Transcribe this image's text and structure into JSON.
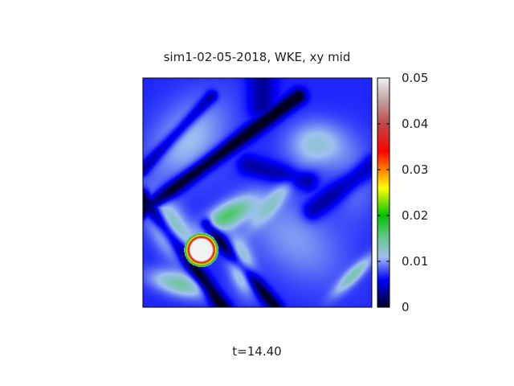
{
  "chart_data": {
    "type": "heatmap",
    "title": "sim1-02-05-2018, WKE, xy mid",
    "xlabel": "t=14.40",
    "ylabel": "",
    "colorbar": {
      "range": [
        0,
        0.05
      ],
      "ticks": [
        0,
        0.01,
        0.02,
        0.03,
        0.04,
        0.05
      ],
      "tick_labels": [
        "0",
        "0.01",
        "0.02",
        "0.03",
        "0.04",
        "0.05"
      ],
      "stops": [
        {
          "value": 0.0,
          "color": "#000020"
        },
        {
          "value": 0.002,
          "color": "#00006e"
        },
        {
          "value": 0.006,
          "color": "#0000ff"
        },
        {
          "value": 0.011,
          "color": "#a0c0f0"
        },
        {
          "value": 0.016,
          "color": "#58c878"
        },
        {
          "value": 0.02,
          "color": "#00c000"
        },
        {
          "value": 0.026,
          "color": "#ffff00"
        },
        {
          "value": 0.03,
          "color": "#ff8000"
        },
        {
          "value": 0.034,
          "color": "#ff0000"
        },
        {
          "value": 0.04,
          "color": "#c04848"
        },
        {
          "value": 0.045,
          "color": "#c0a0a0"
        },
        {
          "value": 0.05,
          "color": "#f2f2f2"
        }
      ]
    },
    "field": {
      "x_range": [
        0,
        1
      ],
      "y_range": [
        0,
        1
      ],
      "background": 0.007,
      "features": [
        {
          "kind": "blob",
          "x": 0.2,
          "y": 0.73,
          "sx": 0.1,
          "sy": 0.15,
          "angle": -40,
          "amp": 0.004
        },
        {
          "kind": "blob",
          "x": 0.76,
          "y": 0.71,
          "sx": 0.09,
          "sy": 0.07,
          "angle": 0,
          "amp": 0.005
        },
        {
          "kind": "blob",
          "x": 0.66,
          "y": 0.3,
          "sx": 0.18,
          "sy": 0.11,
          "angle": -40,
          "amp": 0.003
        },
        {
          "kind": "blob",
          "x": 0.93,
          "y": 0.55,
          "sx": 0.07,
          "sy": 0.12,
          "angle": 0,
          "amp": 0.002
        },
        {
          "kind": "blob",
          "x": 0.12,
          "y": 0.34,
          "sx": 0.05,
          "sy": 0.1,
          "angle": 30,
          "amp": 0.008
        },
        {
          "kind": "blob",
          "x": 0.37,
          "y": 0.4,
          "sx": 0.09,
          "sy": 0.035,
          "angle": 30,
          "amp": 0.009
        },
        {
          "kind": "blob",
          "x": 0.43,
          "y": 0.18,
          "sx": 0.035,
          "sy": 0.08,
          "angle": 15,
          "amp": 0.008
        },
        {
          "kind": "blob",
          "x": 0.16,
          "y": 0.1,
          "sx": 0.09,
          "sy": 0.035,
          "angle": -15,
          "amp": 0.007
        },
        {
          "kind": "blob",
          "x": 0.57,
          "y": 0.46,
          "sx": 0.1,
          "sy": 0.025,
          "angle": 50,
          "amp": 0.004
        },
        {
          "kind": "blob",
          "x": 0.92,
          "y": 0.14,
          "sx": 0.02,
          "sy": 0.08,
          "angle": -45,
          "amp": 0.006
        },
        {
          "kind": "spot",
          "x": 0.255,
          "y": 0.25,
          "r": 0.045,
          "ring": 0.03,
          "peak": 0.06
        },
        {
          "kind": "line",
          "x1": 0.0,
          "y1": 0.48,
          "x2": 0.35,
          "y2": 0.0,
          "w": 0.022,
          "depth": 0.0085
        },
        {
          "kind": "line",
          "x1": 0.0,
          "y1": 0.42,
          "x2": 0.68,
          "y2": 0.92,
          "w": 0.022,
          "depth": 0.0085
        },
        {
          "kind": "line",
          "x1": 0.28,
          "y1": 0.36,
          "x2": 0.58,
          "y2": 0.0,
          "w": 0.02,
          "depth": 0.0075
        },
        {
          "kind": "line",
          "x1": 0.0,
          "y1": 0.6,
          "x2": 0.3,
          "y2": 0.92,
          "w": 0.018,
          "depth": 0.005
        },
        {
          "kind": "line",
          "x1": 0.46,
          "y1": 0.62,
          "x2": 0.72,
          "y2": 0.55,
          "w": 0.03,
          "depth": 0.004
        },
        {
          "kind": "line",
          "x1": 0.74,
          "y1": 0.42,
          "x2": 1.0,
          "y2": 0.62,
          "w": 0.03,
          "depth": 0.0045
        },
        {
          "kind": "line",
          "x1": 0.52,
          "y1": 0.88,
          "x2": 0.52,
          "y2": 1.0,
          "w": 0.04,
          "depth": 0.004
        }
      ]
    }
  }
}
